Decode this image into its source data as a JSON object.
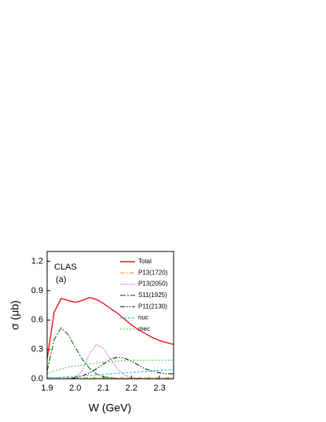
{
  "chart_data": {
    "type": "line",
    "xlabel": "W (GeV)",
    "ylabel": "σ (μb)",
    "annotations": [
      "CLAS",
      "(a)"
    ],
    "xlim": [
      1.9,
      2.35
    ],
    "ylim": [
      0,
      1.3
    ],
    "xticks": [
      1.9,
      {
        "value": 2,
        "label": "2.0"
      },
      2.1,
      2.2,
      2.3
    ],
    "yticks": [
      {
        "value": 0,
        "label": "0.0"
      },
      0.3,
      0.6,
      0.9,
      1.2
    ],
    "x": [
      1.9,
      1.925,
      1.95,
      1.975,
      2.0,
      2.025,
      2.05,
      2.075,
      2.1,
      2.125,
      2.15,
      2.175,
      2.2,
      2.225,
      2.25,
      2.275,
      2.3,
      2.325,
      2.35
    ],
    "series": [
      {
        "name": "Total",
        "color": "#e8141b",
        "values": [
          0.2,
          0.68,
          0.82,
          0.8,
          0.78,
          0.8,
          0.83,
          0.81,
          0.77,
          0.72,
          0.67,
          0.61,
          0.55,
          0.5,
          0.46,
          0.42,
          0.39,
          0.37,
          0.35
        ]
      },
      {
        "name": "P13(1720)",
        "color": "#f08a1c",
        "values": [
          0.01,
          0.01,
          0.01,
          0.01,
          0.01,
          0.01,
          0.01,
          0.01,
          0.01,
          0.01,
          0.01,
          0.01,
          0.01,
          0.01,
          0.01,
          0.01,
          0.01,
          0.01,
          0.01
        ]
      },
      {
        "name": "P13(2050)",
        "color": "#e040e0",
        "values": [
          0,
          0,
          0,
          0,
          0.01,
          0.08,
          0.25,
          0.35,
          0.31,
          0.2,
          0.1,
          0.04,
          0.01,
          0,
          0,
          0,
          0,
          0,
          0
        ]
      },
      {
        "name": "S11(1925)",
        "color": "#1a7a1a",
        "values": [
          0.08,
          0.4,
          0.52,
          0.45,
          0.32,
          0.2,
          0.11,
          0.05,
          0.02,
          0.01,
          0,
          0,
          0,
          0,
          0,
          0,
          0,
          0,
          0
        ]
      },
      {
        "name": "P11(2130)",
        "color": "#000000",
        "values": [
          0,
          0,
          0,
          0,
          0.01,
          0.03,
          0.06,
          0.1,
          0.15,
          0.2,
          0.22,
          0.21,
          0.18,
          0.14,
          0.1,
          0.08,
          0.06,
          0.05,
          0.05
        ]
      },
      {
        "name": "nuc",
        "color": "#22d0e0",
        "values": [
          0.01,
          0.01,
          0.015,
          0.02,
          0.025,
          0.03,
          0.035,
          0.04,
          0.045,
          0.05,
          0.055,
          0.06,
          0.065,
          0.07,
          0.075,
          0.08,
          0.085,
          0.09,
          0.095
        ]
      },
      {
        "name": "mec",
        "color": "#5ad05a",
        "values": [
          0.05,
          0.08,
          0.1,
          0.12,
          0.13,
          0.14,
          0.15,
          0.16,
          0.17,
          0.175,
          0.18,
          0.185,
          0.19,
          0.19,
          0.19,
          0.19,
          0.19,
          0.19,
          0.19
        ]
      }
    ]
  }
}
